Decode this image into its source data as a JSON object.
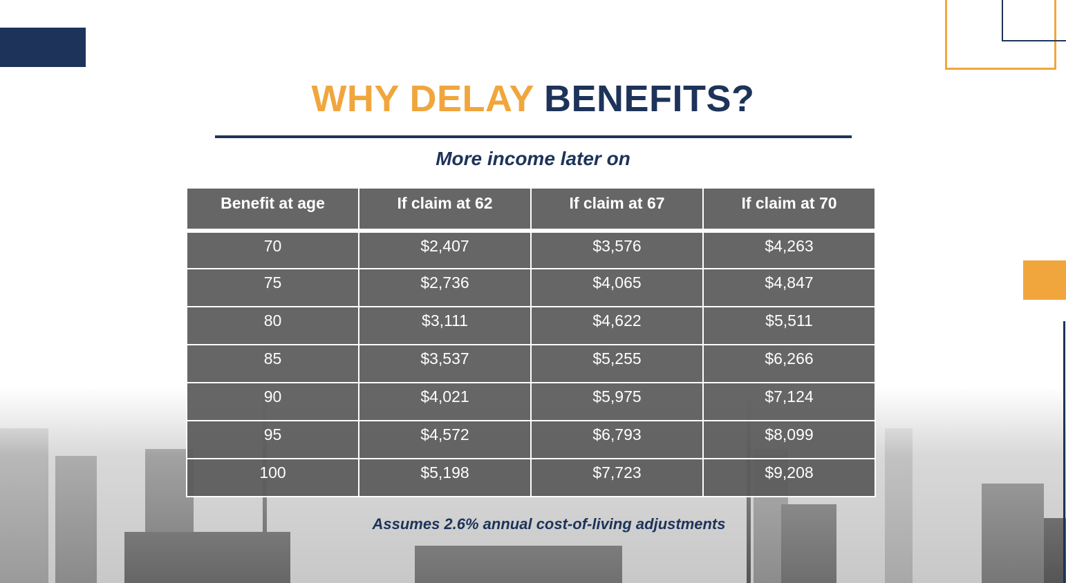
{
  "title": [
    "WHY DELAY",
    "BENEFITS?"
  ],
  "subtitle": "More income later on",
  "table": {
    "header": [
      "Benefit at age",
      "If claim at 62",
      "If claim at 67",
      "If claim at 70"
    ],
    "rows": [
      [
        "70",
        "$2,407",
        "$3,576",
        "$4,263"
      ],
      [
        "75",
        "$2,736",
        "$4,065",
        "$4,847"
      ],
      [
        "80",
        "$3,111",
        "$4,622",
        "$5,511"
      ],
      [
        "85",
        "$3,537",
        "$5,255",
        "$6,266"
      ],
      [
        "90",
        "$4,021",
        "$5,975",
        "$7,124"
      ],
      [
        "95",
        "$4,572",
        "$6,793",
        "$8,099"
      ],
      [
        "100",
        "$5,198",
        "$7,723",
        "$9,208"
      ]
    ]
  },
  "footnote": "Assumes 2.6% annual cost-of-living adjustments"
}
